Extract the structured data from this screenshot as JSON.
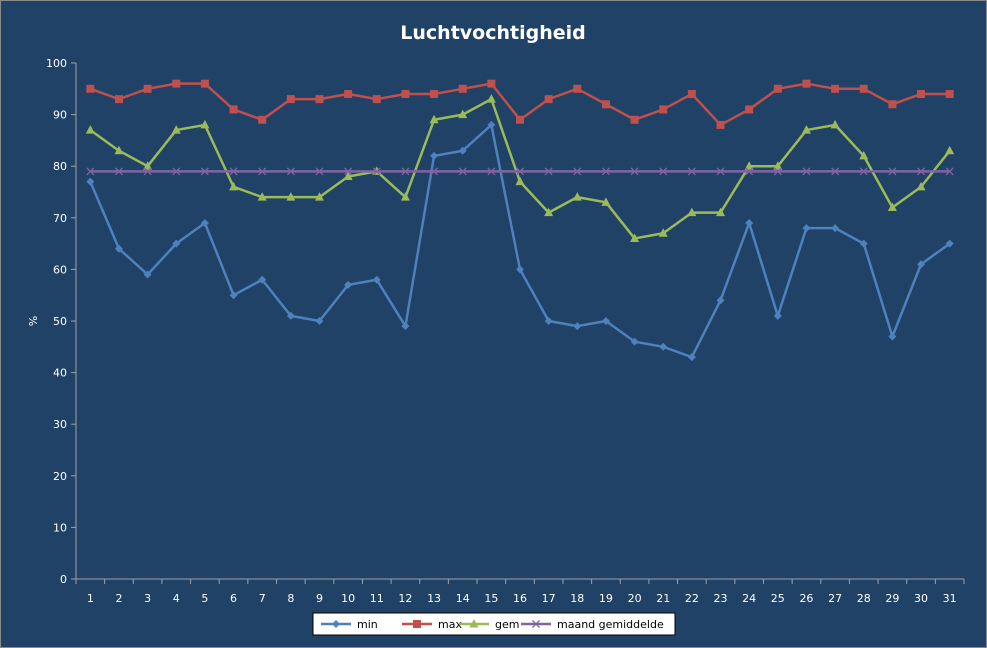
{
  "chart_data": {
    "type": "line",
    "title": "Luchtvochtigheid",
    "xlabel": "",
    "ylabel": "%",
    "ylim": [
      0,
      100
    ],
    "yticks": [
      0,
      10,
      20,
      30,
      40,
      50,
      60,
      70,
      80,
      90,
      100
    ],
    "categories": [
      "1",
      "2",
      "3",
      "4",
      "5",
      "6",
      "7",
      "8",
      "9",
      "10",
      "11",
      "12",
      "13",
      "14",
      "15",
      "16",
      "17",
      "18",
      "19",
      "20",
      "21",
      "22",
      "23",
      "24",
      "25",
      "26",
      "27",
      "28",
      "29",
      "30",
      "31"
    ],
    "grid": false,
    "legend_position": "bottom",
    "series": [
      {
        "name": "min",
        "color": "#4f81bd",
        "marker": "diamond",
        "values": [
          77,
          64,
          59,
          65,
          69,
          55,
          58,
          51,
          50,
          57,
          58,
          49,
          82,
          83,
          88,
          60,
          50,
          49,
          50,
          46,
          45,
          43,
          54,
          69,
          51,
          68,
          68,
          65,
          47,
          61,
          65
        ]
      },
      {
        "name": "max",
        "color": "#c0504d",
        "marker": "square",
        "values": [
          95,
          93,
          95,
          96,
          96,
          91,
          89,
          93,
          93,
          94,
          93,
          94,
          94,
          95,
          96,
          89,
          93,
          95,
          92,
          89,
          91,
          94,
          88,
          91,
          95,
          96,
          95,
          95,
          92,
          94,
          94
        ]
      },
      {
        "name": "gem",
        "color": "#9bbb59",
        "marker": "triangle",
        "values": [
          87,
          83,
          80,
          87,
          88,
          76,
          74,
          74,
          74,
          78,
          79,
          74,
          89,
          90,
          93,
          77,
          71,
          74,
          73,
          66,
          67,
          71,
          71,
          80,
          80,
          87,
          88,
          82,
          72,
          76,
          83
        ]
      },
      {
        "name": "maand gemiddelde",
        "color": "#8064a2",
        "marker": "x",
        "values": [
          79,
          79,
          79,
          79,
          79,
          79,
          79,
          79,
          79,
          79,
          79,
          79,
          79,
          79,
          79,
          79,
          79,
          79,
          79,
          79,
          79,
          79,
          79,
          79,
          79,
          79,
          79,
          79,
          79,
          79,
          79
        ]
      }
    ]
  }
}
